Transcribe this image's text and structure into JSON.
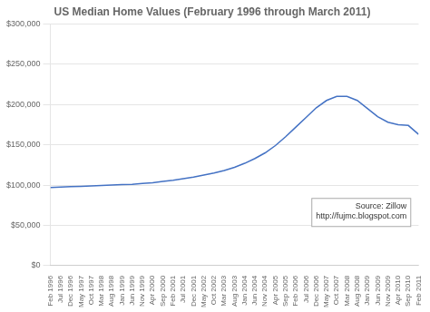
{
  "chart_data": {
    "type": "line",
    "title": "US Median Home Values (February 1996 through March 2011)",
    "annotations": [
      "Source: Zillow\nhttp://fujmc.blogspot.com"
    ],
    "categories": [
      "Feb 1996",
      "Jul 1996",
      "Dec 1996",
      "May 1997",
      "Oct 1997",
      "Mar 1998",
      "Aug 1998",
      "Jan 1999",
      "Jun 1999",
      "Nov 1999",
      "Apr 2000",
      "Sep 2000",
      "Feb 2001",
      "Jul 2001",
      "Dec 2001",
      "May 2002",
      "Oct 2002",
      "Mar 2003",
      "Aug 2003",
      "Jan 2004",
      "Jun 2004",
      "Nov 2004",
      "Apr 2005",
      "Sep 2005",
      "Feb 2006",
      "Jul 2006",
      "Dec 2006",
      "May 2007",
      "Oct 2007",
      "Mar 2008",
      "Aug 2008",
      "Jan 2009",
      "Jun 2009",
      "Nov 2009",
      "Apr 2010",
      "Sep 2010",
      "Feb 2011"
    ],
    "values": [
      97000,
      97500,
      98000,
      98500,
      99000,
      99500,
      100000,
      100500,
      101000,
      102000,
      103000,
      104500,
      106000,
      108000,
      110000,
      112500,
      115000,
      118000,
      122000,
      127000,
      133000,
      140000,
      149000,
      160000,
      172000,
      184000,
      196000,
      205000,
      210000,
      210000,
      205000,
      195000,
      185000,
      178000,
      175000,
      174000,
      163000
    ],
    "color": "#4472c4",
    "ylim": [
      0,
      300000
    ],
    "yticks": [
      {
        "value": 0,
        "label": "$0"
      },
      {
        "value": 50000,
        "label": "$50,000"
      },
      {
        "value": 100000,
        "label": "$100,000"
      },
      {
        "value": 150000,
        "label": "$150,000"
      },
      {
        "value": 200000,
        "label": "$200,000"
      },
      {
        "value": 250000,
        "label": "$250,000"
      },
      {
        "value": 300000,
        "label": "$300,000"
      }
    ],
    "grid": "y"
  }
}
